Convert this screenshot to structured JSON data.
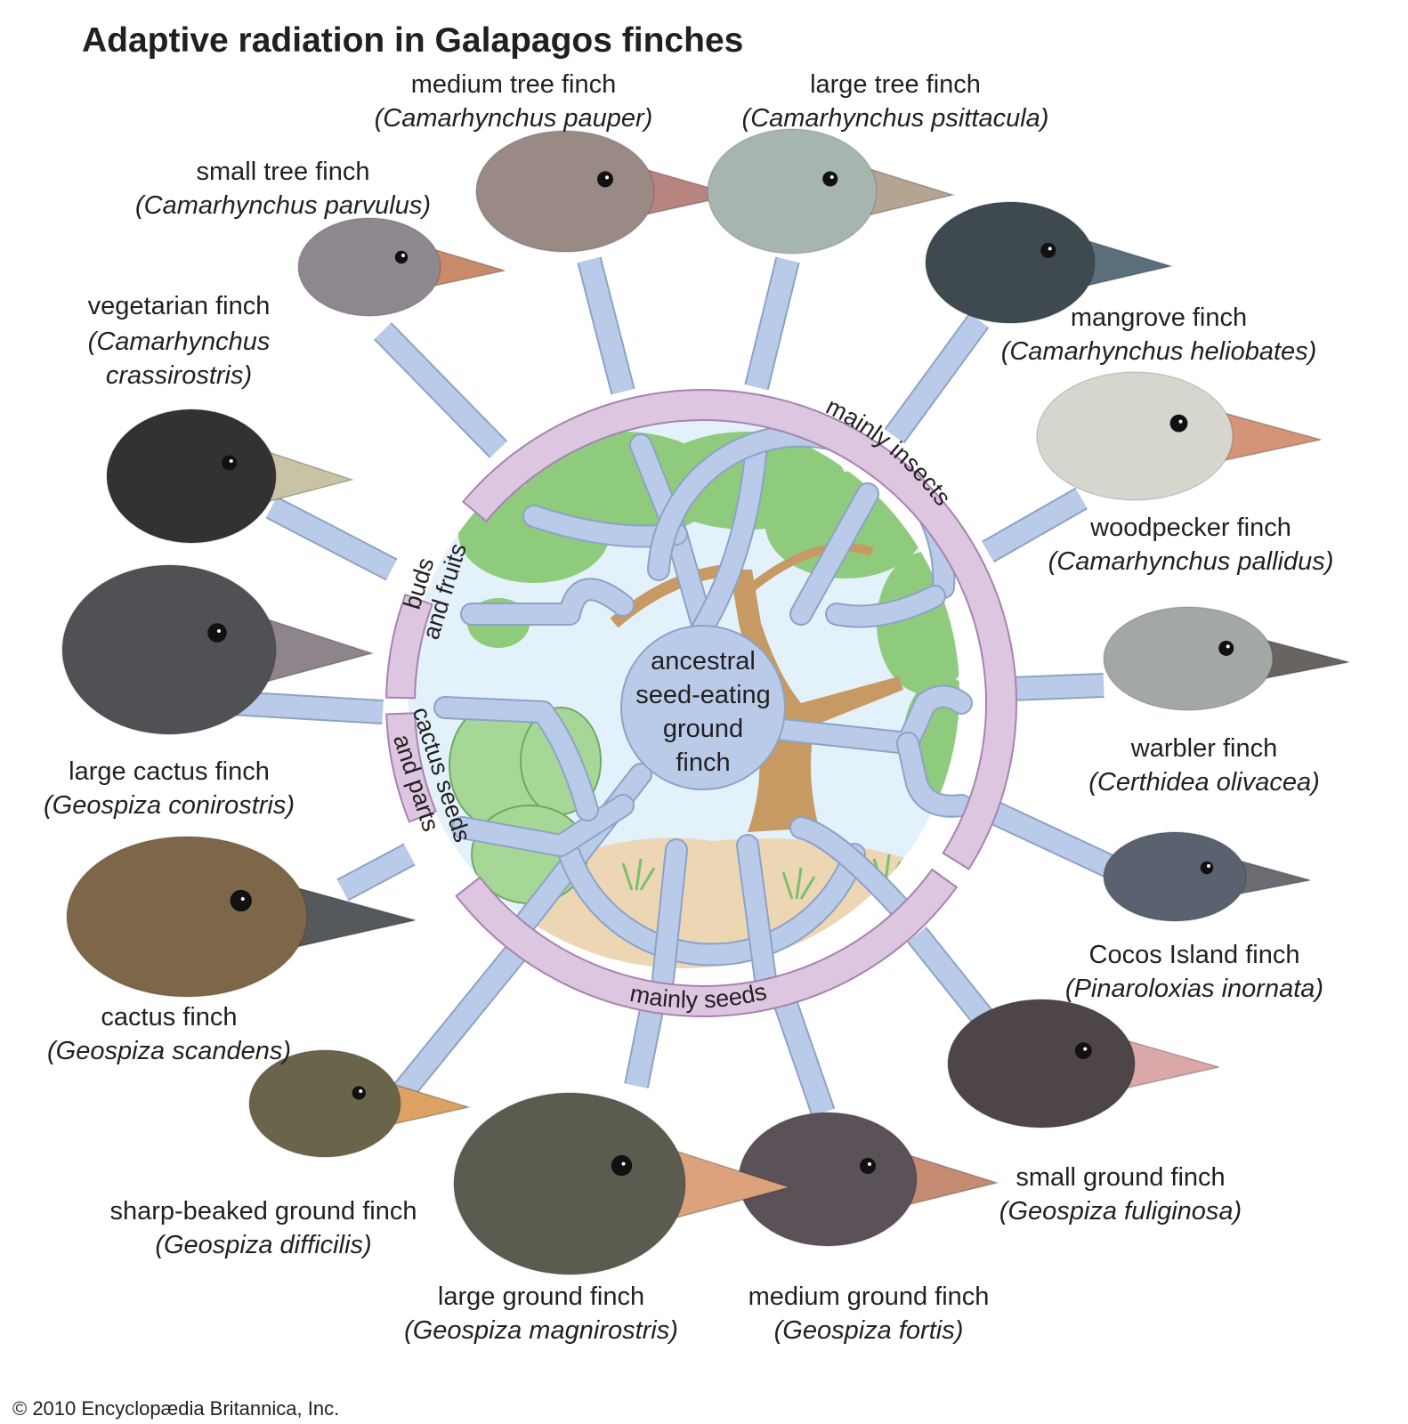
{
  "title": "Adaptive radiation in Galapagos finches",
  "center_label": [
    "ancestral",
    "seed-eating",
    "ground",
    "finch"
  ],
  "diet_bands": {
    "insects": "mainly insects",
    "buds": [
      "buds",
      "and fruits"
    ],
    "cactus": [
      "cactus seeds",
      "and parts"
    ],
    "seeds": "mainly seeds"
  },
  "species": [
    {
      "id": "small-tree-finch",
      "common": [
        "small tree finch"
      ],
      "scientific": [
        "(Camarhynchus parvulus)"
      ],
      "plumage": "#8f8790",
      "beak": "#c98a6a",
      "diet": "insects"
    },
    {
      "id": "medium-tree-finch",
      "common": [
        "medium tree finch"
      ],
      "scientific": [
        "(Camarhynchus pauper)"
      ],
      "plumage": "#9a8a86",
      "beak": "#b88480",
      "diet": "insects"
    },
    {
      "id": "large-tree-finch",
      "common": [
        "large tree finch"
      ],
      "scientific": [
        "(Camarhynchus psittacula)"
      ],
      "plumage": "#a7b5b0",
      "beak": "#b6a493",
      "diet": "insects"
    },
    {
      "id": "mangrove-finch",
      "common": [
        "mangrove finch"
      ],
      "scientific": [
        "(Camarhynchus heliobates)"
      ],
      "plumage": "#3e4a4f",
      "beak": "#5b6e7c",
      "diet": "insects"
    },
    {
      "id": "woodpecker-finch",
      "common": [
        "woodpecker finch"
      ],
      "scientific": [
        "(Camarhynchus pallidus)"
      ],
      "plumage": "#d6d6cf",
      "beak": "#d49477",
      "diet": "insects"
    },
    {
      "id": "warbler-finch",
      "common": [
        "warbler finch"
      ],
      "scientific": [
        "(Certhidea olivacea)"
      ],
      "plumage": "#a3a7a6",
      "beak": "#6a6461",
      "diet": "insects"
    },
    {
      "id": "cocos-island-finch",
      "common": [
        "Cocos Island finch"
      ],
      "scientific": [
        "(Pinaroloxias inornata)"
      ],
      "plumage": "#5a6270",
      "beak": "#6b6c72",
      "diet": "insects"
    },
    {
      "id": "small-ground-finch",
      "common": [
        "small ground finch"
      ],
      "scientific": [
        "(Geospiza fuliginosa)"
      ],
      "plumage": "#4d4548",
      "beak": "#dba8aa",
      "diet": "seeds"
    },
    {
      "id": "medium-ground-finch",
      "common": [
        "medium ground finch"
      ],
      "scientific": [
        "(Geospiza fortis)"
      ],
      "plumage": "#5a5258",
      "beak": "#c48a72",
      "diet": "seeds"
    },
    {
      "id": "large-ground-finch",
      "common": [
        "large ground finch"
      ],
      "scientific": [
        "(Geospiza magnirostris)"
      ],
      "plumage": "#5c5b4f",
      "beak": "#dca27c",
      "diet": "seeds"
    },
    {
      "id": "sharp-beaked-ground-finch",
      "common": [
        "sharp-beaked ground finch"
      ],
      "scientific": [
        "(Geospiza difficilis)"
      ],
      "plumage": "#6a644a",
      "beak": "#dba264",
      "diet": "seeds"
    },
    {
      "id": "cactus-finch",
      "common": [
        "cactus finch"
      ],
      "scientific": [
        "(Geospiza scandens)"
      ],
      "plumage": "#7e6648",
      "beak": "#55595c",
      "diet": "cactus"
    },
    {
      "id": "large-cactus-finch",
      "common": [
        "large cactus finch"
      ],
      "scientific": [
        "(Geospiza conirostris)"
      ],
      "plumage": "#4f5154",
      "beak": "#8d848c",
      "diet": "cactus"
    },
    {
      "id": "vegetarian-finch",
      "common": [
        "vegetarian finch"
      ],
      "scientific": [
        "(Camarhynchus",
        "crassirostris)"
      ],
      "plumage": "#333230",
      "beak": "#c9c3a6",
      "diet": "buds"
    }
  ],
  "colors": {
    "branch": "#b9cbe8",
    "branch_stroke": "#8da3c6",
    "band": "#dcc6e0",
    "band_stroke": "#a882b0",
    "sky": "#e3f1fb",
    "foliage": "#8fcb7c",
    "trunk": "#c79a64",
    "ground": "#ecd6b4",
    "cactus": "#a5d896"
  },
  "credit": "© 2010 Encyclopædia Britannica, Inc."
}
